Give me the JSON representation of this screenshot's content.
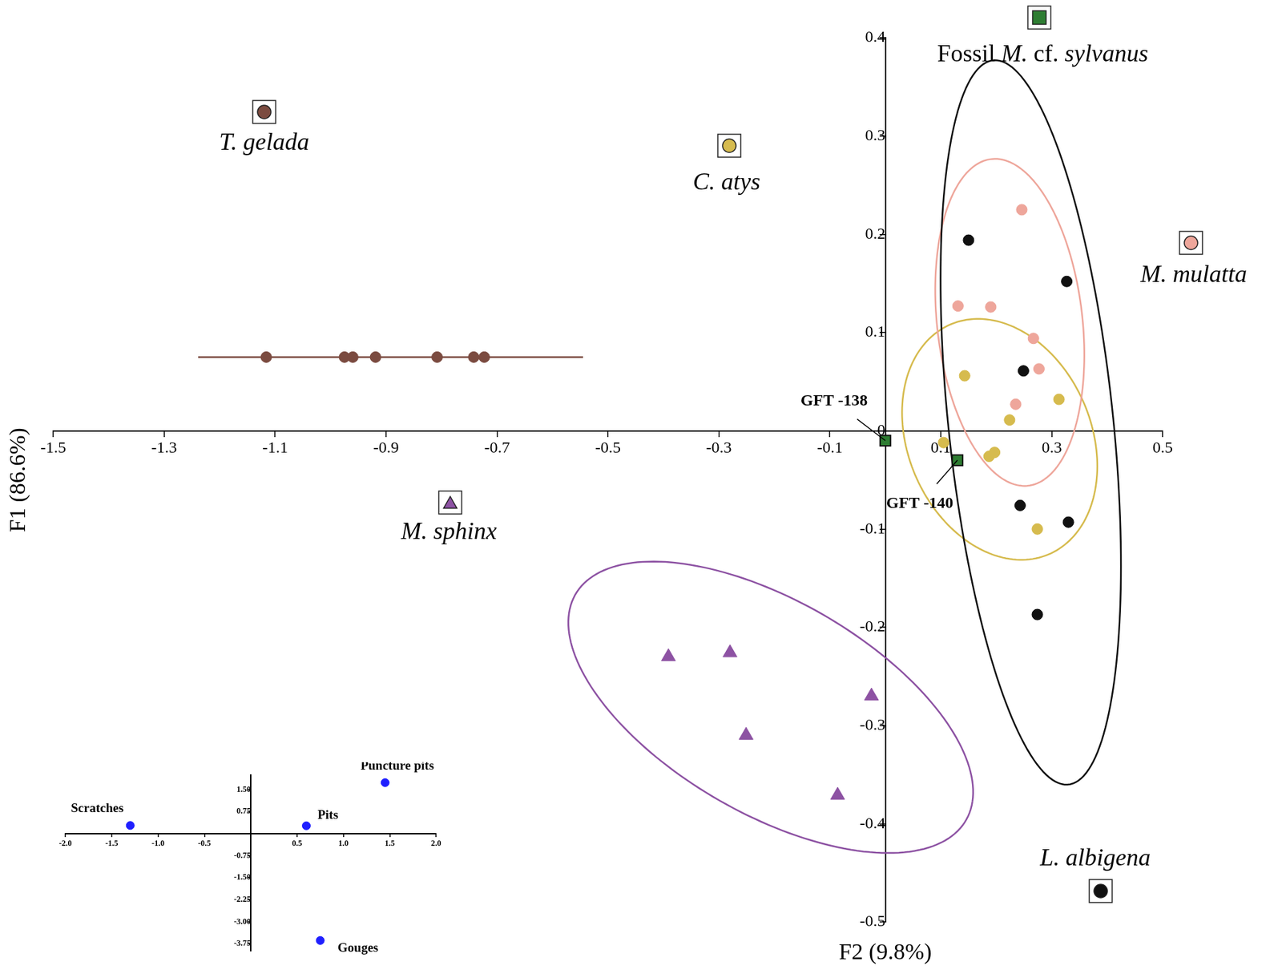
{
  "chart_data": [
    {
      "type": "scatter",
      "xlabel": "F2 (9.8%)",
      "ylabel": "F1 (86.6%)",
      "xlim": [
        -1.5,
        0.5
      ],
      "ylim": [
        -0.5,
        0.4
      ],
      "xticks": [
        -1.5,
        -1.3,
        -1.1,
        -0.9,
        -0.7,
        -0.5,
        -0.3,
        -0.1,
        0.1,
        0.3,
        0.5
      ],
      "yticks": [
        0.4,
        0.3,
        0.2,
        0.1,
        0,
        -0.1,
        -0.2,
        -0.3,
        -0.4,
        -0.5
      ],
      "grid": false,
      "series": [
        {
          "name": "T. gelada",
          "color": "#7b4b40",
          "marker": "circle",
          "x": [
            -1.116,
            -0.975,
            -0.96,
            -0.919,
            -0.808,
            -0.742,
            -0.723
          ],
          "values": [
            0.075,
            0.075,
            0.075,
            0.075,
            0.075,
            0.075,
            0.075
          ]
        },
        {
          "name": "C. atys",
          "color": "#d6bb4e",
          "marker": "circle",
          "x": [
            0.105,
            0.143,
            0.224,
            0.187,
            0.197,
            0.313,
            0.274
          ],
          "values": [
            -0.012,
            0.056,
            0.011,
            -0.026,
            -0.022,
            0.032,
            -0.1
          ]
        },
        {
          "name": "M. mulatta",
          "color": "#eea69b",
          "marker": "circle",
          "x": [
            0.246,
            0.131,
            0.19,
            0.267,
            0.277,
            0.235
          ],
          "values": [
            0.225,
            0.127,
            0.126,
            0.094,
            0.063,
            0.027
          ]
        },
        {
          "name": "M. sphinx",
          "color": "#8d52a3",
          "marker": "triangle",
          "x": [
            -0.391,
            -0.28,
            -0.251,
            -0.025,
            -0.086
          ],
          "values": [
            -0.23,
            -0.226,
            -0.31,
            -0.27,
            -0.371
          ]
        },
        {
          "name": "L. albigena",
          "color": "#111111",
          "marker": "circle",
          "x": [
            0.15,
            0.327,
            0.249,
            0.243,
            0.33,
            0.274
          ],
          "values": [
            0.194,
            0.152,
            0.061,
            -0.076,
            -0.093,
            -0.187
          ]
        },
        {
          "name": "Fossil M. cf. sylvanus",
          "color": "#2e7d32",
          "marker": "square",
          "x": [
            0.0,
            0.13
          ],
          "values": [
            -0.01,
            -0.03
          ],
          "point_labels": [
            "GFT -138",
            "GFT -140"
          ]
        }
      ]
    },
    {
      "type": "scatter",
      "xlim": [
        -2,
        2
      ],
      "ylim": [
        -4,
        2
      ],
      "xticks": [
        {
          "value": -2,
          "label": "-2.0"
        },
        {
          "value": -1.5,
          "label": "-1.5"
        },
        {
          "value": -1,
          "label": "-1.0"
        },
        {
          "value": -0.5,
          "label": "-0.5"
        },
        0.5,
        {
          "value": 1,
          "label": "1.0"
        },
        1.5,
        {
          "value": 2,
          "label": "2.0"
        }
      ],
      "yticks": [
        {
          "value": 1.5,
          "label": "1.50"
        },
        0.75,
        -0.75,
        {
          "value": -1.5,
          "label": "-1.50"
        },
        -2.25,
        {
          "value": -3,
          "label": "-3.00"
        },
        -3.75
      ],
      "grid": false,
      "color": "#1f1fff",
      "marker": "circle",
      "x": [
        -1.3,
        0.6,
        1.45,
        0.75
      ],
      "values": [
        0.28,
        0.27,
        1.74,
        -3.64
      ],
      "point_labels": [
        "Scratches",
        "Pits",
        "Puncture pits",
        "Gouges"
      ]
    }
  ]
}
